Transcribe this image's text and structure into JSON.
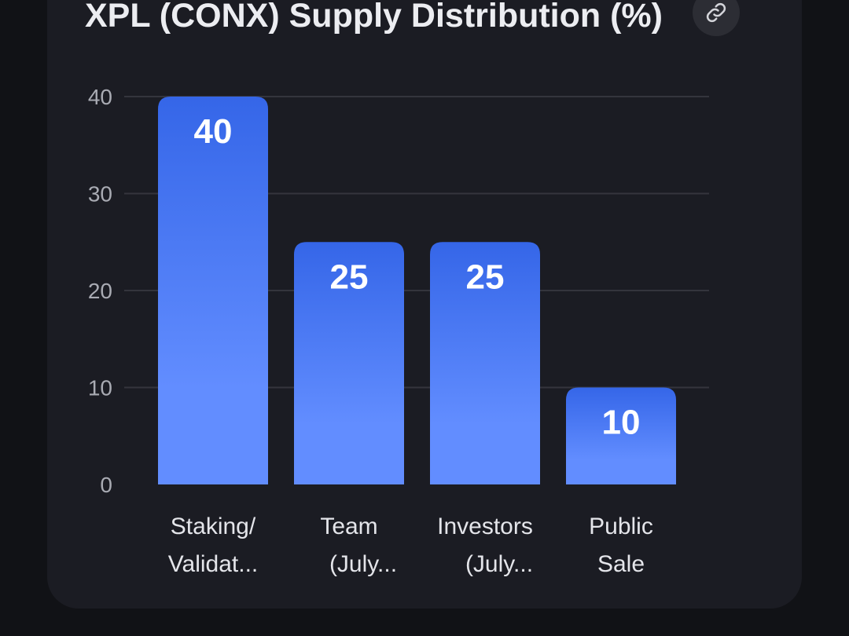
{
  "chart_title": "XPL (CONX) Supply Distribution (%)",
  "link_button": {
    "icon": "link-icon"
  },
  "colors": {
    "bar_top": "#3566e8",
    "bar_bottom": "#628dff",
    "grid": "#34353d",
    "card": "#1b1c23",
    "background": "#111216"
  },
  "chart_data": {
    "type": "bar",
    "title": "XPL (CONX) Supply Distribution (%)",
    "categories": [
      "Staking/ Validators",
      "Team (July...",
      "Investors (July...",
      "Public Sale"
    ],
    "category_display": [
      [
        "Staking/",
        "Validat..."
      ],
      [
        "Team",
        "(July..."
      ],
      [
        "Investors",
        "(July..."
      ],
      [
        "Public",
        "Sale"
      ]
    ],
    "values": [
      40,
      25,
      25,
      10
    ],
    "value_labels": [
      "40",
      "25",
      "25",
      "10"
    ],
    "ylim": [
      0,
      40
    ],
    "yticks": [
      0,
      10,
      20,
      30,
      40
    ],
    "grid": true,
    "legend": "none",
    "xlabel": "",
    "ylabel": ""
  }
}
